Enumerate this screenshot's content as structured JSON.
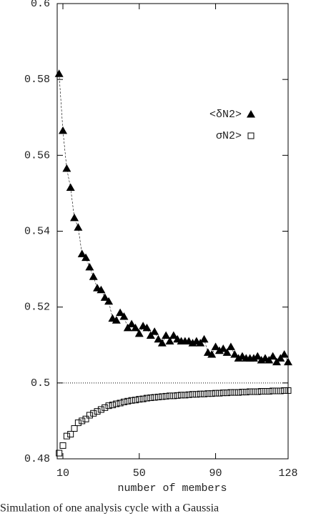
{
  "chart_data": {
    "type": "scatter",
    "xlabel": "number of members",
    "caption": "Simulation of one analysis cycle with a Gaussia",
    "x": [
      8,
      10,
      12,
      14,
      16,
      18,
      20,
      22,
      24,
      26,
      28,
      30,
      32,
      34,
      36,
      38,
      40,
      42,
      44,
      46,
      48,
      50,
      52,
      54,
      56,
      58,
      60,
      62,
      64,
      66,
      68,
      70,
      72,
      74,
      76,
      78,
      80,
      82,
      84,
      86,
      88,
      90,
      92,
      94,
      96,
      98,
      100,
      102,
      104,
      106,
      108,
      110,
      112,
      114,
      116,
      118,
      120,
      122,
      124,
      126,
      128
    ],
    "series": [
      {
        "name": "<δN2>",
        "marker": "triangle",
        "color": "#000000",
        "fit_line": true,
        "values": [
          0.5815,
          0.5665,
          0.5565,
          0.5515,
          0.5435,
          0.541,
          0.534,
          0.533,
          0.5305,
          0.528,
          0.525,
          0.5245,
          0.5225,
          0.5215,
          0.517,
          0.5165,
          0.5185,
          0.5175,
          0.5145,
          0.5155,
          0.5145,
          0.513,
          0.515,
          0.5145,
          0.5125,
          0.5135,
          0.5115,
          0.5105,
          0.5125,
          0.511,
          0.5125,
          0.5115,
          0.511,
          0.511,
          0.511,
          0.5105,
          0.511,
          0.5105,
          0.5115,
          0.508,
          0.5075,
          0.5095,
          0.5085,
          0.509,
          0.508,
          0.5095,
          0.5075,
          0.5065,
          0.507,
          0.5065,
          0.5065,
          0.5065,
          0.507,
          0.506,
          0.5065,
          0.506,
          0.507,
          0.5055,
          0.5065,
          0.5075,
          0.5055
        ]
      },
      {
        "name": "σN2>",
        "marker": "square",
        "color": "#000000",
        "fit_line": false,
        "values": [
          0.4815,
          0.4835,
          0.486,
          0.4865,
          0.488,
          0.4895,
          0.49,
          0.4905,
          0.4915,
          0.492,
          0.4925,
          0.493,
          0.4935,
          0.494,
          0.4942,
          0.4945,
          0.4947,
          0.495,
          0.4952,
          0.4954,
          0.4955,
          0.4957,
          0.4958,
          0.496,
          0.4961,
          0.4962,
          0.4963,
          0.4964,
          0.4965,
          0.4966,
          0.4966,
          0.4967,
          0.4968,
          0.4968,
          0.4969,
          0.497,
          0.497,
          0.4971,
          0.4971,
          0.4972,
          0.4972,
          0.4973,
          0.4973,
          0.4974,
          0.4974,
          0.4975,
          0.4975,
          0.4975,
          0.4976,
          0.4976,
          0.4977,
          0.4977,
          0.4977,
          0.4978,
          0.4978,
          0.4978,
          0.4979,
          0.4979,
          0.4979,
          0.498,
          0.498
        ]
      }
    ],
    "hline": 0.5,
    "xlim": [
      7,
      128
    ],
    "ylim": [
      0.48,
      0.6
    ],
    "xticks": [
      10,
      50,
      90,
      128
    ],
    "yticks": [
      0.48,
      0.5,
      0.52,
      0.54,
      0.56,
      0.58,
      0.6
    ]
  }
}
